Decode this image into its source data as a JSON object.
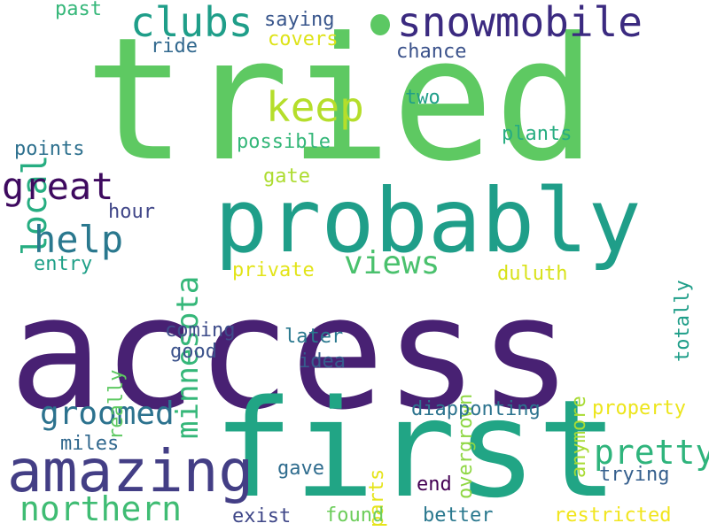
{
  "words": [
    {
      "text": "access",
      "color": "#482173"
    },
    {
      "text": "tried",
      "color": "#5ec962"
    },
    {
      "text": "first",
      "color": "#21a585"
    },
    {
      "text": "probably",
      "color": "#1f9e89"
    },
    {
      "text": "amazing",
      "color": "#433e85"
    },
    {
      "text": "snowmobile",
      "color": "#3b2a80"
    },
    {
      "text": "clubs",
      "color": "#1f9e89"
    },
    {
      "text": "keep",
      "color": "#b5de2b"
    },
    {
      "text": "local",
      "color": "#26ad81"
    },
    {
      "text": "minnesota",
      "color": "#35b779"
    },
    {
      "text": "great",
      "color": "#3e0a5f"
    },
    {
      "text": "help",
      "color": "#2a788e"
    },
    {
      "text": "views",
      "color": "#4ac16d"
    },
    {
      "text": "groomed",
      "color": "#2c728e"
    },
    {
      "text": "northern",
      "color": "#3fbc73"
    },
    {
      "text": "pretty",
      "color": "#2fb47c"
    },
    {
      "text": "past",
      "color": "#35b779"
    },
    {
      "text": "saying",
      "color": "#39568c"
    },
    {
      "text": "covers",
      "color": "#dde318"
    },
    {
      "text": "ride",
      "color": "#31688e"
    },
    {
      "text": "chance",
      "color": "#3b528b"
    },
    {
      "text": "two",
      "color": "#1f9e89"
    },
    {
      "text": "plants",
      "color": "#27ad81"
    },
    {
      "text": "points",
      "color": "#2d708e"
    },
    {
      "text": "possible",
      "color": "#35b779"
    },
    {
      "text": "gate",
      "color": "#addc30"
    },
    {
      "text": "hour",
      "color": "#404688"
    },
    {
      "text": "entry",
      "color": "#1fa088"
    },
    {
      "text": "private",
      "color": "#e2e418"
    },
    {
      "text": "totally",
      "color": "#1f9e89"
    },
    {
      "text": "duluth",
      "color": "#d8e219"
    },
    {
      "text": "overgrown",
      "color": "#8fd744"
    },
    {
      "text": "anymore",
      "color": "#a8db34"
    },
    {
      "text": "really",
      "color": "#5ec962"
    },
    {
      "text": "coming",
      "color": "#3e4c8a"
    },
    {
      "text": "good",
      "color": "#3b528b"
    },
    {
      "text": "later",
      "color": "#2a788e"
    },
    {
      "text": "idea",
      "color": "#365d8d"
    },
    {
      "text": "diapponting",
      "color": "#2c738e"
    },
    {
      "text": "property",
      "color": "#ece51b"
    },
    {
      "text": "parts",
      "color": "#e5e419"
    },
    {
      "text": "miles",
      "color": "#31688e"
    },
    {
      "text": "gave",
      "color": "#2f6c8e"
    },
    {
      "text": "end",
      "color": "#440154"
    },
    {
      "text": "trying",
      "color": "#355f8d"
    },
    {
      "text": "exist",
      "color": "#3f4788"
    },
    {
      "text": "found",
      "color": "#6ccd5a"
    },
    {
      "text": "better",
      "color": "#2a788e"
    },
    {
      "text": "restricted",
      "color": "#f1e51d"
    }
  ]
}
